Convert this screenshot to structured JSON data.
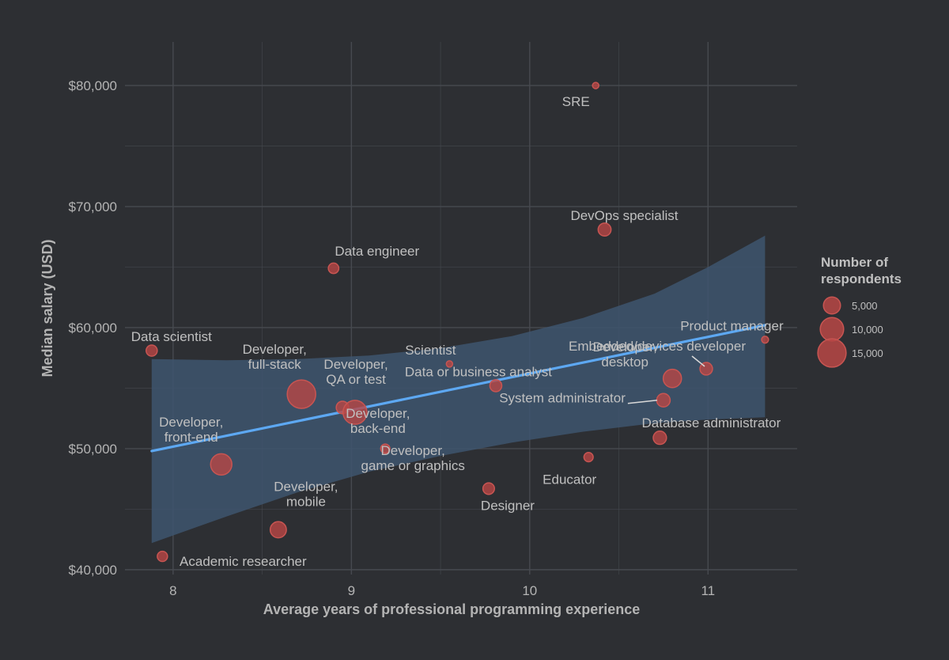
{
  "chart_data": {
    "type": "scatter",
    "xlabel": "Average years of professional programming experience",
    "ylabel": "Median salary (USD)",
    "xlim": [
      7.73,
      11.5
    ],
    "ylim": [
      39600,
      83600
    ],
    "x_ticks": [
      8,
      9,
      10,
      11
    ],
    "x_tick_labels": [
      "8",
      "9",
      "10",
      "11"
    ],
    "y_ticks": [
      40000,
      50000,
      60000,
      70000,
      80000
    ],
    "y_tick_labels": [
      "$40,000",
      "$50,000",
      "$60,000",
      "$70,000",
      "$80,000"
    ],
    "grid": true,
    "points": [
      {
        "label": "SRE",
        "x": 10.37,
        "y": 80000,
        "respondents": 300
      },
      {
        "label": "DevOps specialist",
        "x": 10.42,
        "y": 68100,
        "respondents": 3500
      },
      {
        "label": "Data engineer",
        "x": 8.9,
        "y": 64900,
        "respondents": 2300
      },
      {
        "label": "Data scientist",
        "x": 7.88,
        "y": 58100,
        "respondents": 2600
      },
      {
        "label": "Product manager",
        "x": 11.32,
        "y": 59000,
        "respondents": 1000
      },
      {
        "label": "Scientist",
        "x": 9.55,
        "y": 57000,
        "respondents": 500
      },
      {
        "label": "Embedded/devices developer",
        "x": 10.99,
        "y": 56600,
        "respondents": 3300
      },
      {
        "label": "Data or business analyst",
        "x": 9.81,
        "y": 55200,
        "respondents": 3000
      },
      {
        "label": "Developer, desktop",
        "x": 10.8,
        "y": 55800,
        "respondents": 7000
      },
      {
        "label": "System administrator",
        "x": 10.75,
        "y": 54000,
        "respondents": 3800
      },
      {
        "label": "Developer, full-stack",
        "x": 8.72,
        "y": 54500,
        "respondents": 17000
      },
      {
        "label": "Developer, QA or test",
        "x": 8.95,
        "y": 53400,
        "respondents": 3300
      },
      {
        "label": "Developer, back-end",
        "x": 9.02,
        "y": 53000,
        "respondents": 12000
      },
      {
        "label": "Database administrator",
        "x": 10.73,
        "y": 50900,
        "respondents": 3700
      },
      {
        "label": "Developer, game or graphics",
        "x": 9.19,
        "y": 50000,
        "respondents": 1800
      },
      {
        "label": "Developer, front-end",
        "x": 8.27,
        "y": 48700,
        "respondents": 9500
      },
      {
        "label": "Educator",
        "x": 10.33,
        "y": 49300,
        "respondents": 1800
      },
      {
        "label": "Designer",
        "x": 9.77,
        "y": 46700,
        "respondents": 2800
      },
      {
        "label": "Developer, mobile",
        "x": 8.59,
        "y": 43300,
        "respondents": 5500
      },
      {
        "label": "Academic researcher",
        "x": 7.94,
        "y": 41100,
        "respondents": 2200
      }
    ],
    "trend_line": {
      "x": [
        7.88,
        11.32
      ],
      "y": [
        49800,
        60200
      ]
    },
    "confidence_band": {
      "x": [
        7.88,
        8.3,
        8.7,
        9.1,
        9.5,
        9.9,
        10.3,
        10.7,
        11.0,
        11.32
      ],
      "upper": [
        57400,
        57300,
        57400,
        57700,
        58300,
        59300,
        60800,
        62800,
        65000,
        67600
      ],
      "lower": [
        42200,
        44400,
        46400,
        48100,
        49400,
        50500,
        51400,
        52100,
        52400,
        52600
      ]
    },
    "legend": {
      "title": "Number of respondents",
      "position": "right",
      "entries": [
        {
          "label": "5,000",
          "value": 5000
        },
        {
          "label": "10,000",
          "value": 10000
        },
        {
          "label": "15,000",
          "value": 15000
        }
      ]
    },
    "colors": {
      "background": "#2d2f33",
      "grid": "#474a50",
      "point_fill": "#b94645",
      "point_stroke": "#c85552",
      "trend_line": "#5da8f2",
      "band": "#3e556f",
      "text": "#b4b4b4"
    }
  }
}
